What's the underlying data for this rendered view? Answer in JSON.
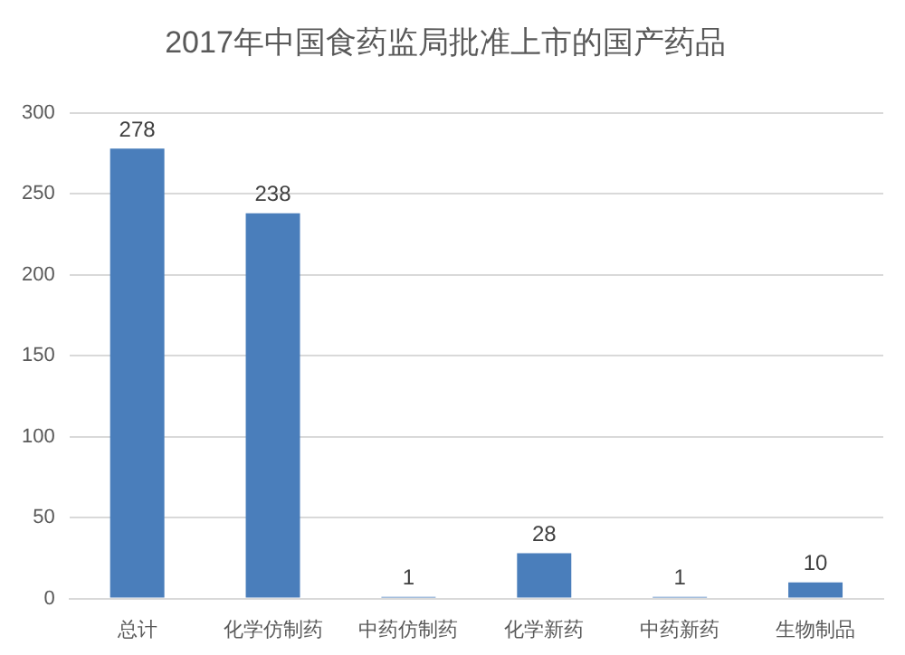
{
  "chart_data": {
    "type": "bar",
    "title": "2017年中国食药监局批准上市的国产药品",
    "categories": [
      "总计",
      "化学仿制药",
      "中药仿制药",
      "化学新药",
      "中药新药",
      "生物制品"
    ],
    "values": [
      278,
      238,
      1,
      28,
      1,
      10
    ],
    "color": "#4a7ebb",
    "ylim": [
      0,
      300
    ],
    "yticks": [
      0,
      50,
      100,
      150,
      200,
      250,
      300
    ],
    "grid": "y",
    "data_labels": true
  }
}
